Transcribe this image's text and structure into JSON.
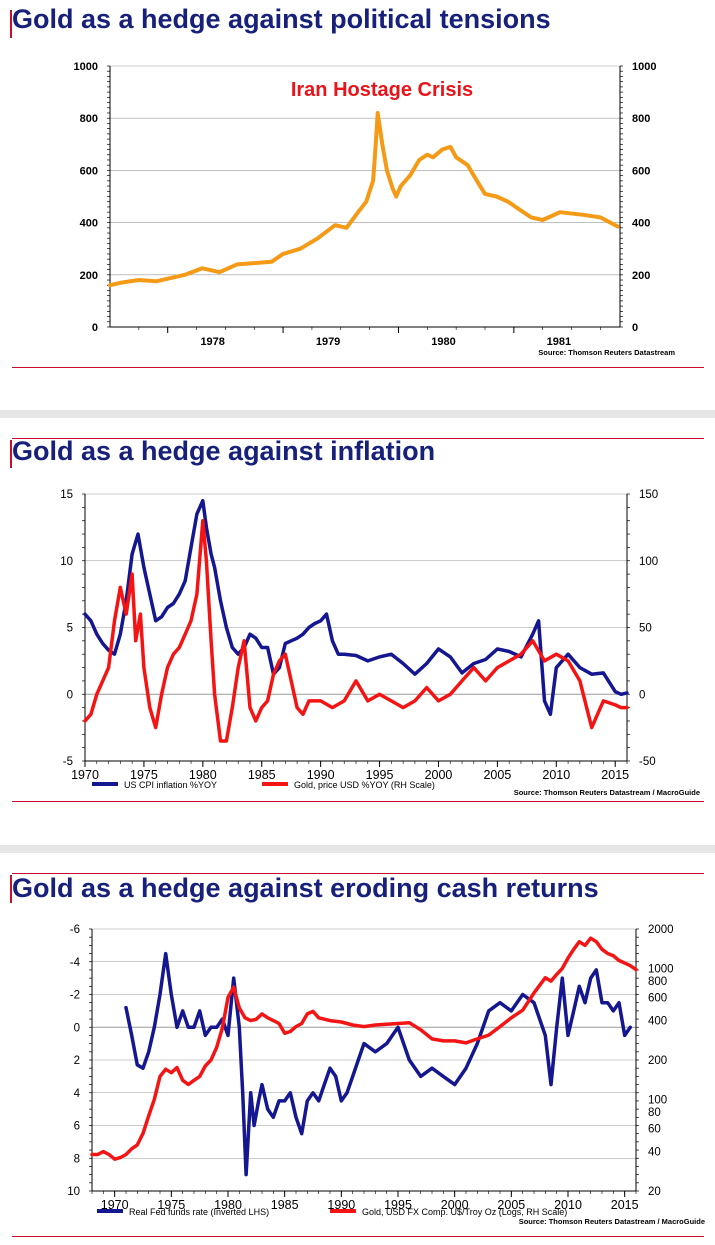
{
  "charts": [
    {
      "title": "Gold as a hedge against political tensions",
      "annotation": "Iran Hostage Crisis",
      "source": "Source: Thomson Reuters Datastream",
      "y_ticks_left": [
        "0",
        "200",
        "400",
        "600",
        "800",
        "1000"
      ],
      "y_ticks_right": [
        "0",
        "200",
        "400",
        "600",
        "800",
        "1000"
      ],
      "x_ticks": [
        "1978",
        "1979",
        "1980",
        "1981"
      ]
    },
    {
      "title": "Gold as a hedge against inflation",
      "legend": [
        "US CPI inflation %YOY",
        "Gold, price USD %YOY  (RH Scale)"
      ],
      "source": "Source: Thomson Reuters Datastream / MacroGuide",
      "y_ticks_left": [
        "-5",
        "0",
        "5",
        "10",
        "15"
      ],
      "y_ticks_right": [
        "-50",
        "0",
        "50",
        "100",
        "150"
      ],
      "x_ticks": [
        "1970",
        "1975",
        "1980",
        "1985",
        "1990",
        "1995",
        "2000",
        "2005",
        "2010",
        "2015"
      ]
    },
    {
      "title": "Gold as a hedge against eroding cash returns",
      "legend": [
        "Real Fed funds rate (Inverted LHS)",
        "Gold, USD FX Comp. U$/Troy Oz (Logs, RH Scale)"
      ],
      "source": "Source: Thomson Reuters Datastream / MacroGuide",
      "y_ticks_left": [
        "-6",
        "-4",
        "-2",
        "0",
        "2",
        "4",
        "6",
        "8",
        "10"
      ],
      "y_ticks_right": [
        "20",
        "40",
        "60",
        "80",
        "100",
        "200",
        "400",
        "600",
        "800",
        "1000",
        "2000"
      ],
      "x_ticks": [
        "1970",
        "1975",
        "1980",
        "1985",
        "1990",
        "1995",
        "2000",
        "2005",
        "2010",
        "2015"
      ]
    }
  ],
  "chart_data": [
    {
      "type": "line",
      "title": "Gold as a hedge against political tensions",
      "ylim": [
        0,
        1000
      ],
      "xlim": [
        1977.5,
        1981.92
      ],
      "grid": true,
      "series": [
        {
          "color": "#f59a16",
          "x": [
            1977.5,
            1977.6,
            1977.75,
            1977.9,
            1978.0,
            1978.15,
            1978.3,
            1978.45,
            1978.6,
            1978.75,
            1978.9,
            1979.0,
            1979.15,
            1979.3,
            1979.45,
            1979.55,
            1979.65,
            1979.72,
            1979.78,
            1979.8,
            1979.82,
            1979.86,
            1979.9,
            1979.95,
            1979.98,
            1980.02,
            1980.1,
            1980.18,
            1980.25,
            1980.3,
            1980.38,
            1980.45,
            1980.5,
            1980.6,
            1980.68,
            1980.75,
            1980.85,
            1980.95,
            1981.05,
            1981.15,
            1981.25,
            1981.4,
            1981.6,
            1981.75,
            1981.9
          ],
          "y": [
            160,
            170,
            180,
            175,
            185,
            200,
            225,
            210,
            240,
            245,
            250,
            280,
            300,
            340,
            390,
            380,
            440,
            480,
            560,
            680,
            820,
            700,
            600,
            530,
            500,
            540,
            580,
            640,
            660,
            650,
            680,
            690,
            650,
            620,
            560,
            510,
            500,
            480,
            450,
            420,
            410,
            440,
            430,
            420,
            385
          ]
        }
      ]
    },
    {
      "type": "line",
      "title": "Gold as a hedge against inflation",
      "ylim": [
        -5,
        15
      ],
      "y2lim": [
        -50,
        150
      ],
      "xlim": [
        1970,
        2016
      ],
      "grid": true,
      "legend": "bottom",
      "series": [
        {
          "name": "US CPI inflation %YOY",
          "color": "#14178f",
          "axis": "left",
          "x": [
            1970,
            1970.5,
            1971,
            1971.5,
            1972,
            1972.5,
            1973,
            1973.5,
            1974,
            1974.5,
            1975,
            1975.5,
            1976,
            1976.5,
            1977,
            1977.5,
            1978,
            1978.5,
            1979,
            1979.5,
            1980,
            1980.3,
            1980.7,
            1981,
            1981.5,
            1982,
            1982.5,
            1983,
            1983.5,
            1984,
            1984.5,
            1985,
            1985.5,
            1986,
            1986.5,
            1987,
            1987.5,
            1988,
            1988.5,
            1989,
            1989.5,
            1990,
            1990.5,
            1991,
            1991.5,
            1992,
            1993,
            1994,
            1995,
            1996,
            1997,
            1998,
            1999,
            2000,
            2001,
            2002,
            2003,
            2004,
            2005,
            2006,
            2007,
            2008,
            2008.5,
            2009,
            2009.5,
            2010,
            2011,
            2011.5,
            2012,
            2013,
            2014,
            2015,
            2015.5,
            2016
          ],
          "y": [
            6.0,
            5.5,
            4.5,
            3.8,
            3.3,
            3.0,
            4.5,
            7.0,
            10.5,
            12.0,
            9.5,
            7.5,
            5.5,
            5.8,
            6.5,
            6.8,
            7.5,
            8.5,
            11.0,
            13.5,
            14.5,
            12.5,
            10.5,
            9.5,
            7.0,
            5.0,
            3.5,
            3.0,
            3.5,
            4.5,
            4.2,
            3.5,
            3.5,
            1.5,
            2.0,
            3.8,
            4.0,
            4.2,
            4.5,
            5.0,
            5.3,
            5.5,
            6.0,
            4.0,
            3.0,
            3.0,
            2.9,
            2.5,
            2.8,
            3.0,
            2.3,
            1.5,
            2.3,
            3.4,
            2.8,
            1.6,
            2.3,
            2.6,
            3.4,
            3.2,
            2.8,
            4.5,
            5.5,
            -0.5,
            -1.5,
            2.0,
            3.0,
            2.5,
            2.0,
            1.5,
            1.6,
            0.2,
            0.0,
            0.1
          ]
        },
        {
          "name": "Gold, price USD %YOY  (RH Scale)",
          "color": "#f51414",
          "axis": "right",
          "x": [
            1970,
            1970.5,
            1971,
            1971.5,
            1972,
            1972.5,
            1973,
            1973.5,
            1974,
            1974.3,
            1974.7,
            1975,
            1975.5,
            1976,
            1976.5,
            1977,
            1977.5,
            1978,
            1978.5,
            1979,
            1979.5,
            1980,
            1980.3,
            1980.7,
            1981,
            1981.5,
            1982,
            1982.5,
            1983,
            1983.5,
            1984,
            1984.5,
            1985,
            1985.5,
            1986,
            1986.5,
            1987,
            1987.5,
            1988,
            1988.5,
            1989,
            1990,
            1991,
            1992,
            1993,
            1994,
            1995,
            1996,
            1997,
            1998,
            1999,
            2000,
            2001,
            2002,
            2003,
            2004,
            2005,
            2006,
            2007,
            2008,
            2009,
            2010,
            2011,
            2012,
            2013,
            2014,
            2015,
            2015.5,
            2016
          ],
          "y": [
            -20,
            -15,
            0,
            10,
            20,
            55,
            80,
            60,
            90,
            40,
            60,
            20,
            -10,
            -25,
            0,
            20,
            30,
            35,
            45,
            55,
            75,
            130,
            100,
            40,
            0,
            -35,
            -35,
            -10,
            20,
            40,
            -10,
            -20,
            -10,
            -5,
            15,
            25,
            30,
            10,
            -10,
            -15,
            -5,
            -5,
            -10,
            -5,
            10,
            -5,
            0,
            -5,
            -10,
            -5,
            5,
            -5,
            0,
            10,
            20,
            10,
            20,
            25,
            30,
            40,
            25,
            30,
            25,
            10,
            -25,
            -5,
            -8,
            -10,
            -10
          ]
        }
      ]
    },
    {
      "type": "line",
      "title": "Gold as a hedge against eroding cash returns",
      "ylim": [
        10,
        -6
      ],
      "y2lim": [
        20,
        2000
      ],
      "y2scale": "log",
      "xlim": [
        1968,
        2016
      ],
      "grid": true,
      "legend": "bottom",
      "series": [
        {
          "name": "Real Fed funds rate (Inverted LHS)",
          "color": "#14178f",
          "axis": "left",
          "x": [
            1971,
            1971.5,
            1972,
            1972.5,
            1973,
            1973.5,
            1974,
            1974.5,
            1975,
            1975.5,
            1976,
            1976.5,
            1977,
            1977.5,
            1978,
            1978.5,
            1979,
            1979.5,
            1980,
            1980.5,
            1981,
            1981.3,
            1981.6,
            1982,
            1982.3,
            1982.7,
            1983,
            1983.5,
            1984,
            1984.5,
            1985,
            1985.5,
            1986,
            1986.5,
            1987,
            1987.5,
            1988,
            1988.5,
            1989,
            1989.5,
            1990,
            1990.5,
            1991,
            1991.5,
            1992,
            1993,
            1994,
            1995,
            1996,
            1997,
            1998,
            1999,
            2000,
            2001,
            2002,
            2003,
            2004,
            2005,
            2006,
            2007,
            2008,
            2008.5,
            2009,
            2009.5,
            2010,
            2010.5,
            2011,
            2011.5,
            2012,
            2012.5,
            2013,
            2013.5,
            2014,
            2014.5,
            2015,
            2015.5
          ],
          "y": [
            -1.2,
            0.5,
            2.3,
            2.5,
            1.5,
            0.0,
            -2.0,
            -4.5,
            -2.0,
            0.0,
            -1.0,
            0.0,
            0.0,
            -1.0,
            0.5,
            0.0,
            0.0,
            -0.5,
            0.5,
            -3.0,
            0.0,
            4.0,
            9.0,
            4.0,
            6.0,
            4.5,
            3.5,
            5.0,
            5.5,
            4.5,
            4.5,
            4.0,
            5.5,
            6.5,
            4.5,
            4.0,
            4.5,
            3.5,
            2.5,
            3.0,
            4.5,
            4.0,
            3.0,
            2.0,
            1.0,
            1.5,
            1.0,
            0.0,
            2.0,
            3.0,
            2.5,
            3.0,
            3.5,
            2.5,
            1.0,
            -1.0,
            -1.5,
            -1.0,
            -2.0,
            -1.5,
            0.5,
            3.5,
            0.0,
            -3.0,
            0.5,
            -1.0,
            -2.5,
            -1.5,
            -3.0,
            -3.5,
            -1.5,
            -1.5,
            -1.0,
            -1.5,
            0.5,
            0.0
          ]
        },
        {
          "name": "Gold, USD FX Comp. U$/Troy Oz (Logs, RH Scale)",
          "color": "#f51414",
          "axis": "right",
          "x": [
            1968,
            1968.5,
            1969,
            1969.5,
            1970,
            1970.5,
            1971,
            1971.5,
            1972,
            1972.5,
            1973,
            1973.5,
            1974,
            1974.5,
            1975,
            1975.5,
            1976,
            1976.5,
            1977,
            1977.5,
            1978,
            1978.5,
            1979,
            1979.5,
            1980,
            1980.5,
            1981,
            1981.5,
            1982,
            1982.5,
            1983,
            1983.5,
            1984,
            1984.5,
            1985,
            1985.5,
            1986,
            1986.5,
            1987,
            1987.5,
            1988,
            1988.5,
            1989,
            1990,
            1991,
            1992,
            1993,
            1994,
            1995,
            1996,
            1997,
            1998,
            1999,
            2000,
            2001,
            2002,
            2003,
            2004,
            2005,
            2006,
            2007,
            2008,
            2008.5,
            2009,
            2009.5,
            2010,
            2010.5,
            2011,
            2011.5,
            2012,
            2012.5,
            2013,
            2013.5,
            2014,
            2014.5,
            2015,
            2015.5,
            2016
          ],
          "y": [
            38,
            38,
            40,
            38,
            35,
            36,
            38,
            42,
            45,
            55,
            75,
            100,
            150,
            170,
            160,
            175,
            140,
            130,
            140,
            150,
            180,
            200,
            250,
            350,
            600,
            720,
            500,
            420,
            400,
            410,
            450,
            420,
            400,
            380,
            320,
            330,
            360,
            380,
            450,
            470,
            420,
            410,
            400,
            390,
            370,
            360,
            370,
            375,
            380,
            385,
            340,
            290,
            280,
            280,
            270,
            290,
            310,
            360,
            420,
            480,
            650,
            850,
            800,
            900,
            1000,
            1200,
            1400,
            1600,
            1500,
            1700,
            1600,
            1400,
            1300,
            1250,
            1150,
            1100,
            1050,
            980
          ]
        }
      ]
    }
  ]
}
